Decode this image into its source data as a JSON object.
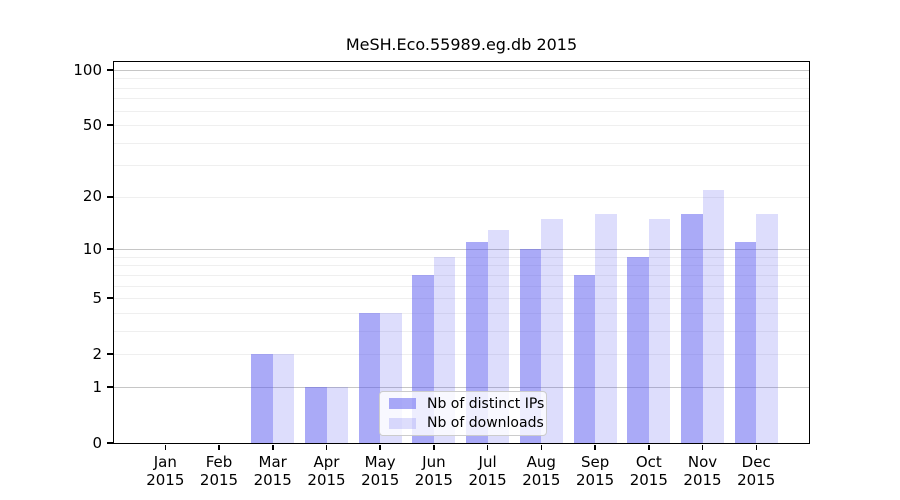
{
  "title": "MeSH.Eco.55989.eg.db 2015",
  "chart_data": {
    "type": "bar",
    "title": "MeSH.Eco.55989.eg.db 2015",
    "x_tick_months": [
      "Jan",
      "Feb",
      "Mar",
      "Apr",
      "May",
      "Jun",
      "Jul",
      "Aug",
      "Sep",
      "Oct",
      "Nov",
      "Dec"
    ],
    "x_tick_year": "2015",
    "series": [
      {
        "name": "Nb of distinct IPs",
        "color": "rgba(85,85,240,0.5)",
        "color_hex": "#aaaaf7",
        "values": [
          0,
          0,
          2,
          1,
          4,
          7,
          11,
          10,
          7,
          9,
          16,
          11
        ]
      },
      {
        "name": "Nb of downloads",
        "color": "rgba(85,85,240,0.2)",
        "color_hex": "#dcdcfb",
        "values": [
          0,
          0,
          2,
          1,
          4,
          9,
          13,
          15,
          16,
          15,
          22,
          16
        ]
      }
    ],
    "y_axis": {
      "scale": "log1p",
      "tick_labels": [
        0,
        1,
        2,
        5,
        10,
        20,
        50,
        100
      ],
      "major_gridlines": [
        1,
        10,
        100
      ],
      "minor_gridlines": [
        2,
        3,
        4,
        5,
        6,
        7,
        8,
        9,
        20,
        30,
        40,
        50,
        60,
        70,
        80,
        90
      ],
      "ylim": [
        0,
        110
      ]
    },
    "legend": {
      "position": "lower-center",
      "entries": [
        "Nb of distinct IPs",
        "Nb of downloads"
      ]
    },
    "grid": "on"
  }
}
